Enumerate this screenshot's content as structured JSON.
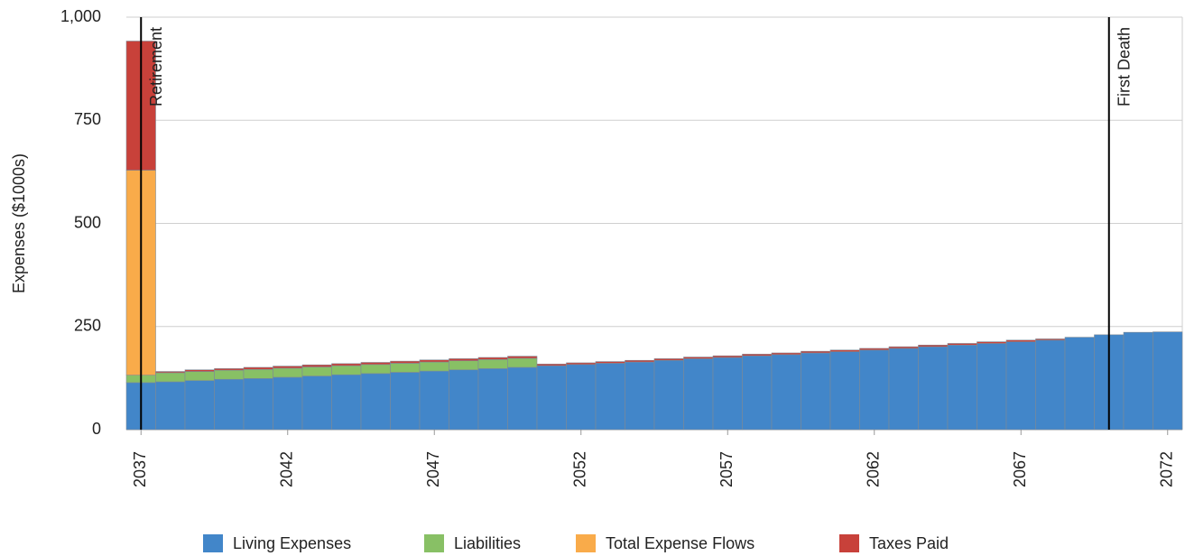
{
  "chart_data": {
    "type": "stacked_bar",
    "y_label": "Expenses ($1000s)",
    "x": [
      2037,
      2038,
      2039,
      2040,
      2041,
      2042,
      2043,
      2044,
      2045,
      2046,
      2047,
      2048,
      2049,
      2050,
      2051,
      2052,
      2053,
      2054,
      2055,
      2056,
      2057,
      2058,
      2059,
      2060,
      2061,
      2062,
      2063,
      2064,
      2065,
      2066,
      2067,
      2068,
      2069,
      2070,
      2071,
      2072
    ],
    "xlim": [
      2036.5,
      2072.5
    ],
    "xticks": [
      2037,
      2042,
      2047,
      2052,
      2057,
      2062,
      2067,
      2072
    ],
    "ylim": [
      0,
      1000
    ],
    "yticks": [
      0,
      250,
      500,
      750,
      {
        "value": 1000,
        "label": "1,000"
      }
    ],
    "grid": true,
    "legend": "bottom",
    "series": [
      {
        "name": "Living Expenses",
        "color": "#4286c9",
        "values": [
          114,
          116,
          119,
          122,
          124,
          127,
          130,
          133,
          136,
          139,
          142,
          145,
          148,
          151,
          155,
          158,
          161,
          164,
          168,
          172,
          175,
          179,
          182,
          186,
          189,
          193,
          197,
          201,
          205,
          209,
          213,
          217,
          224,
          230,
          236,
          237
        ]
      },
      {
        "name": "Liabilities",
        "color": "#88c065",
        "values": [
          18,
          22,
          22,
          22,
          22,
          22,
          22,
          22,
          22,
          22,
          22,
          22,
          22,
          22,
          0,
          0,
          0,
          0,
          0,
          0,
          0,
          0,
          0,
          0,
          0,
          0,
          0,
          0,
          0,
          0,
          0,
          0,
          0,
          0,
          0,
          0
        ]
      },
      {
        "name": "Total Expense Flows",
        "color": "#f9ab4a",
        "values": [
          497,
          0,
          0,
          0,
          0,
          0,
          0,
          0,
          0,
          0,
          0,
          0,
          0,
          0,
          0,
          0,
          0,
          0,
          0,
          0,
          0,
          0,
          0,
          0,
          0,
          0,
          0,
          0,
          0,
          0,
          0,
          0,
          0,
          0,
          0,
          0
        ]
      },
      {
        "name": "Taxes Paid",
        "color": "#c8413a",
        "values": [
          313,
          3,
          4,
          4,
          5,
          5,
          5,
          5,
          5,
          5,
          5,
          5,
          5,
          5,
          4,
          4,
          4,
          4,
          4,
          4,
          4,
          4,
          4,
          4,
          4,
          4,
          4,
          4,
          4,
          4,
          4,
          3,
          0,
          0,
          0,
          0
        ]
      }
    ],
    "annotations": [
      {
        "label": "Retirement",
        "x": 2037
      },
      {
        "label": "First Death",
        "x": 2070
      }
    ]
  }
}
